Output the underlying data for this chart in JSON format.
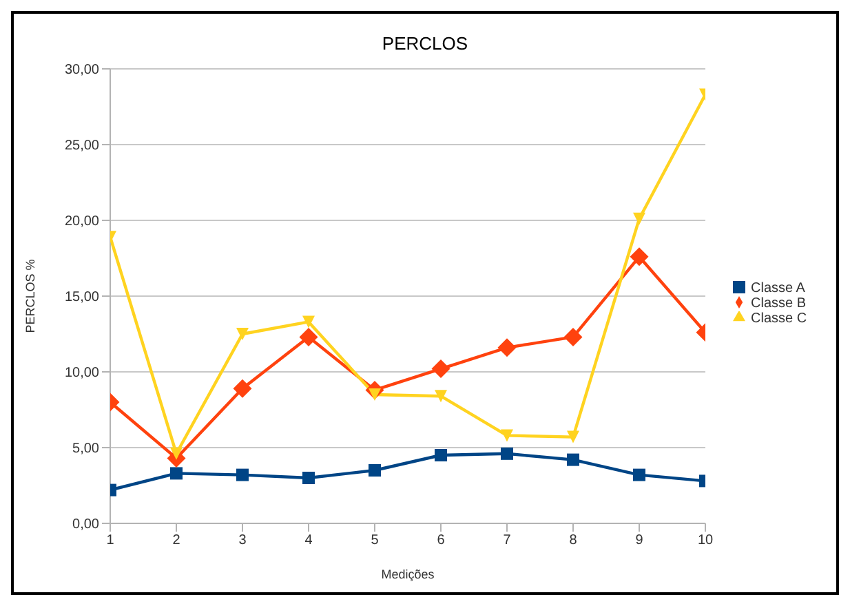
{
  "chart_data": {
    "type": "line",
    "title": "PERCLOS",
    "xlabel": "Medições",
    "ylabel": "PERCLOS %",
    "x": [
      1,
      2,
      3,
      4,
      5,
      6,
      7,
      8,
      9,
      10
    ],
    "series": [
      {
        "name": "Classe A",
        "color": "#004586",
        "marker": "square",
        "values": [
          2.2,
          3.3,
          3.2,
          3.0,
          3.5,
          4.5,
          4.6,
          4.2,
          3.2,
          2.8
        ]
      },
      {
        "name": "Classe B",
        "color": "#ff420e",
        "marker": "diamond",
        "values": [
          8.0,
          4.3,
          8.9,
          12.3,
          8.8,
          10.2,
          11.6,
          12.3,
          17.6,
          12.6
        ]
      },
      {
        "name": "Classe C",
        "color": "#ffd320",
        "marker": "triangle",
        "values": [
          18.9,
          4.6,
          12.5,
          13.3,
          8.5,
          8.4,
          5.8,
          5.7,
          20.1,
          28.3
        ]
      }
    ],
    "xlim": [
      1,
      10
    ],
    "xticks": [
      1,
      2,
      3,
      4,
      5,
      6,
      7,
      8,
      9,
      10
    ],
    "ylim": [
      0,
      30
    ],
    "yticks": [
      {
        "value": 0,
        "label": "0,00"
      },
      {
        "value": 5,
        "label": "5,00"
      },
      {
        "value": 10,
        "label": "10,00"
      },
      {
        "value": 15,
        "label": "15,00"
      },
      {
        "value": 20,
        "label": "20,00"
      },
      {
        "value": 25,
        "label": "25,00"
      },
      {
        "value": 30,
        "label": "30,00"
      }
    ],
    "grid": "y",
    "legend": "right",
    "line_style": "solid"
  }
}
